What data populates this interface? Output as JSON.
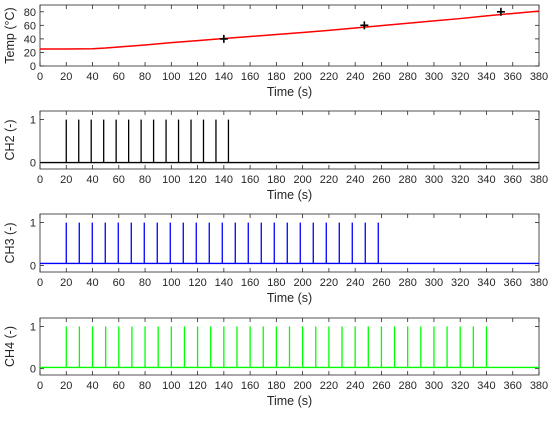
{
  "chart_data": [
    {
      "type": "line",
      "ylabel": "Temp (°C)",
      "xlabel": "Time (s)",
      "xlim": [
        0,
        380
      ],
      "ylim": [
        0,
        90
      ],
      "xticks": [
        0,
        20,
        40,
        60,
        80,
        100,
        120,
        140,
        160,
        180,
        200,
        220,
        240,
        260,
        280,
        300,
        320,
        340,
        360,
        380
      ],
      "yticks": [
        0,
        20,
        40,
        60,
        80
      ],
      "grid": false,
      "series": [
        {
          "color": "#ff0000",
          "x": [
            0,
            20,
            40,
            50,
            60,
            80,
            100,
            120,
            140,
            160,
            180,
            200,
            220,
            240,
            260,
            280,
            300,
            320,
            340,
            360,
            380
          ],
          "y": [
            25,
            25,
            25.5,
            26.5,
            28,
            31,
            34.5,
            37.5,
            40.5,
            43.5,
            46.5,
            49.5,
            52.5,
            56,
            59.5,
            63,
            66.5,
            70,
            74,
            77.5,
            81
          ]
        }
      ],
      "markers": {
        "style": "plus",
        "color": "#000000",
        "points": [
          {
            "x": 140,
            "y": 40
          },
          {
            "x": 247,
            "y": 60
          },
          {
            "x": 351,
            "y": 80
          }
        ]
      }
    },
    {
      "type": "line",
      "ylabel": "CH2 (-)",
      "xlabel": "Time (s)",
      "xlim": [
        0,
        380
      ],
      "ylim": [
        -0.15,
        1.2
      ],
      "xticks": [
        0,
        20,
        40,
        60,
        80,
        100,
        120,
        140,
        160,
        180,
        200,
        220,
        240,
        260,
        280,
        300,
        320,
        340,
        360,
        380
      ],
      "yticks": [
        0,
        1
      ],
      "grid": false,
      "pulses": {
        "color": "#000000",
        "high": 1,
        "low": 0,
        "times": [
          20,
          29.5,
          39,
          48.5,
          58,
          67.5,
          77,
          86.5,
          96,
          105.5,
          115,
          124.5,
          134,
          143.5
        ]
      }
    },
    {
      "type": "line",
      "ylabel": "CH3 (-)",
      "xlabel": "Time (s)",
      "xlim": [
        0,
        380
      ],
      "ylim": [
        -0.15,
        1.2
      ],
      "xticks": [
        0,
        20,
        40,
        60,
        80,
        100,
        120,
        140,
        160,
        180,
        200,
        220,
        240,
        260,
        280,
        300,
        320,
        340,
        360,
        380
      ],
      "yticks": [
        0,
        1
      ],
      "grid": false,
      "pulses": {
        "color": "#0000ff",
        "high": 1,
        "low": 0.05,
        "times": [
          20,
          29.9,
          39.8,
          49.7,
          59.6,
          69.5,
          79.4,
          89.3,
          99.2,
          109.1,
          119,
          128.9,
          138.8,
          148.7,
          158.6,
          168.5,
          178.4,
          188.3,
          198.2,
          208.1,
          218,
          227.9,
          237.8,
          247.7,
          257.6
        ]
      }
    },
    {
      "type": "line",
      "ylabel": "CH4 (-)",
      "xlabel": "Time (s)",
      "xlim": [
        0,
        380
      ],
      "ylim": [
        -0.15,
        1.2
      ],
      "xticks": [
        0,
        20,
        40,
        60,
        80,
        100,
        120,
        140,
        160,
        180,
        200,
        220,
        240,
        260,
        280,
        300,
        320,
        340,
        360,
        380
      ],
      "yticks": [
        0,
        1
      ],
      "grid": false,
      "pulses": {
        "color": "#00ff00",
        "high": 1,
        "low": 0.03,
        "times": [
          20,
          30,
          40,
          50,
          60,
          70,
          80,
          90,
          100,
          110,
          120,
          130,
          140,
          150,
          160,
          170,
          180,
          190,
          200,
          210,
          220,
          230,
          240,
          250,
          260,
          270,
          280,
          290,
          300,
          310,
          320,
          330,
          340
        ]
      }
    }
  ]
}
